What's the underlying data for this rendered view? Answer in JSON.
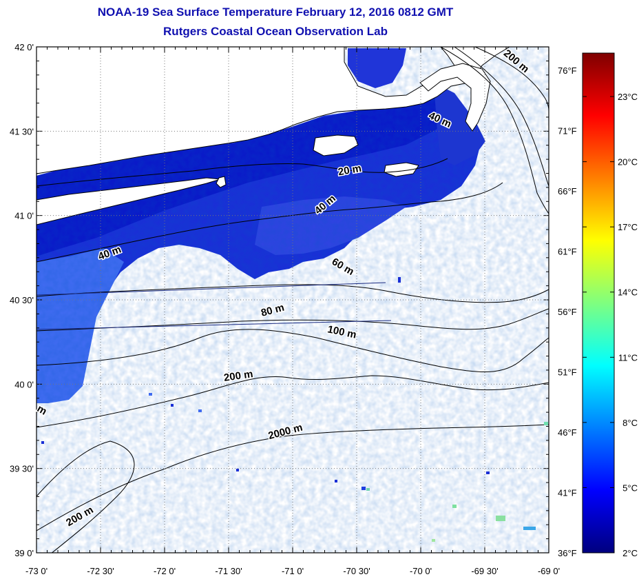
{
  "title": "NOAA-19 Sea Surface Temperature February 12, 2016 0812 GMT",
  "subtitle": "Rutgers Coastal Ocean Observation Lab",
  "map": {
    "lon_range": [
      -73.0,
      -69.0
    ],
    "lat_range": [
      39.0,
      42.0
    ],
    "lon_ticks": [
      {
        "value": -73.0,
        "label": "-73 0'"
      },
      {
        "value": -72.5,
        "label": "-72 30'"
      },
      {
        "value": -72.0,
        "label": "-72 0'"
      },
      {
        "value": -71.5,
        "label": "-71 30'"
      },
      {
        "value": -71.0,
        "label": "-71 0'"
      },
      {
        "value": -70.5,
        "label": "-70 30'"
      },
      {
        "value": -70.0,
        "label": "-70 0'"
      },
      {
        "value": -69.5,
        "label": "-69 30'"
      },
      {
        "value": -69.0,
        "label": "-69 0'"
      }
    ],
    "lat_ticks": [
      {
        "value": 42.0,
        "label": "42 0'"
      },
      {
        "value": 41.5,
        "label": "41 30'"
      },
      {
        "value": 41.0,
        "label": "41 0'"
      },
      {
        "value": 40.5,
        "label": "40 30'"
      },
      {
        "value": 40.0,
        "label": "40 0'"
      },
      {
        "value": 39.5,
        "label": "39 30'"
      },
      {
        "value": 39.0,
        "label": "39 0'"
      }
    ],
    "fahrenheit_ticks": [
      "76°F",
      "71°F",
      "66°F",
      "61°F",
      "56°F",
      "51°F",
      "46°F",
      "41°F",
      "36°F"
    ],
    "grid": true
  },
  "contour_labels": [
    {
      "text": "200 m",
      "lon": -69.27,
      "lat": 41.9,
      "rotate": 40
    },
    {
      "text": "40 m",
      "lon": -69.86,
      "lat": 41.55,
      "rotate": 25
    },
    {
      "text": "20 m",
      "lon": -70.55,
      "lat": 41.25,
      "rotate": -10
    },
    {
      "text": "40 m",
      "lon": -70.73,
      "lat": 41.05,
      "rotate": -40
    },
    {
      "text": "40 m",
      "lon": -72.42,
      "lat": 40.76,
      "rotate": -20
    },
    {
      "text": "60 m",
      "lon": -70.62,
      "lat": 40.68,
      "rotate": 30
    },
    {
      "text": "80 m",
      "lon": -71.15,
      "lat": 40.42,
      "rotate": -15
    },
    {
      "text": "100 m",
      "lon": -70.62,
      "lat": 40.29,
      "rotate": 12
    },
    {
      "text": "200 m",
      "lon": -71.42,
      "lat": 40.03,
      "rotate": -8
    },
    {
      "text": "2000 m",
      "lon": -71.05,
      "lat": 39.7,
      "rotate": -15
    },
    {
      "text": "200 m",
      "lon": -72.65,
      "lat": 39.2,
      "rotate": -30
    },
    {
      "text": "m",
      "lon": -72.97,
      "lat": 39.83,
      "rotate": 30
    }
  ],
  "colorbar": {
    "min_c": 2,
    "max_c": 25,
    "ticks": [
      "23°C",
      "20°C",
      "17°C",
      "14°C",
      "11°C",
      "8°C",
      "5°C",
      "2°C"
    ],
    "colors": [
      "#00007f",
      "#0000ff",
      "#007fff",
      "#00ffff",
      "#7fff7f",
      "#ffff00",
      "#ff7f00",
      "#ff0000",
      "#7f0000"
    ]
  },
  "sst": {
    "unit": "°C",
    "coverage": "cold water (about 3-8 °C) over the inner shelf from Long Island Sound to Cape Cod; mostly no data offshore"
  }
}
